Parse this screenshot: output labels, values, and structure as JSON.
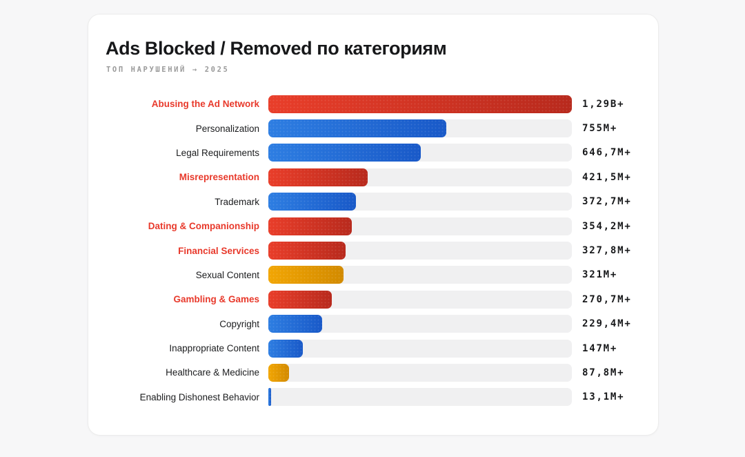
{
  "card": {
    "title": "Ads Blocked / Removed по категориям",
    "subtitle": "ТОП НАРУШЕНИЙ → 2025"
  },
  "colors": {
    "page_background": "#f7f7f8",
    "card_background": "#ffffff",
    "track": "#f0f0f1",
    "red_bar_start": "#e93e2a",
    "red_bar_end": "#b82a1d",
    "blue_bar_start": "#2e7ee2",
    "blue_bar_end": "#1959c8",
    "yellow_bar_start": "#f2a604",
    "yellow_bar_end": "#d28a00",
    "label_highlight": "#e8392b",
    "label_default": "#1b1c1e"
  },
  "chart_data": {
    "type": "bar",
    "orientation": "horizontal",
    "title": "Ads Blocked / Removed по категориям",
    "subtitle": "ТОП НАРУШЕНИЙ → 2025",
    "value_axis_max_millions": 1290,
    "grid": false,
    "legend": false,
    "rows": [
      {
        "label": "Abusing the Ad Network",
        "value_label": "1,29B+",
        "value_millions": 1290,
        "color": "red",
        "highlighted": true
      },
      {
        "label": "Personalization",
        "value_label": "755M+",
        "value_millions": 755,
        "color": "blue",
        "highlighted": false
      },
      {
        "label": "Legal Requirements",
        "value_label": "646,7M+",
        "value_millions": 646.7,
        "color": "blue",
        "highlighted": false
      },
      {
        "label": "Misrepresentation",
        "value_label": "421,5M+",
        "value_millions": 421.5,
        "color": "red",
        "highlighted": true
      },
      {
        "label": "Trademark",
        "value_label": "372,7M+",
        "value_millions": 372.7,
        "color": "blue",
        "highlighted": false
      },
      {
        "label": "Dating & Companionship",
        "value_label": "354,2M+",
        "value_millions": 354.2,
        "color": "red",
        "highlighted": true
      },
      {
        "label": "Financial Services",
        "value_label": "327,8M+",
        "value_millions": 327.8,
        "color": "red",
        "highlighted": true
      },
      {
        "label": "Sexual Content",
        "value_label": "321M+",
        "value_millions": 321,
        "color": "yellow",
        "highlighted": false
      },
      {
        "label": "Gambling & Games",
        "value_label": "270,7M+",
        "value_millions": 270.7,
        "color": "red",
        "highlighted": true
      },
      {
        "label": "Copyright",
        "value_label": "229,4M+",
        "value_millions": 229.4,
        "color": "blue",
        "highlighted": false
      },
      {
        "label": "Inappropriate Content",
        "value_label": "147M+",
        "value_millions": 147,
        "color": "blue",
        "highlighted": false
      },
      {
        "label": "Healthcare & Medicine",
        "value_label": "87,8M+",
        "value_millions": 87.8,
        "color": "yellow",
        "highlighted": false
      },
      {
        "label": "Enabling Dishonest Behavior",
        "value_label": "13,1M+",
        "value_millions": 13.1,
        "color": "blue",
        "highlighted": false
      }
    ]
  }
}
